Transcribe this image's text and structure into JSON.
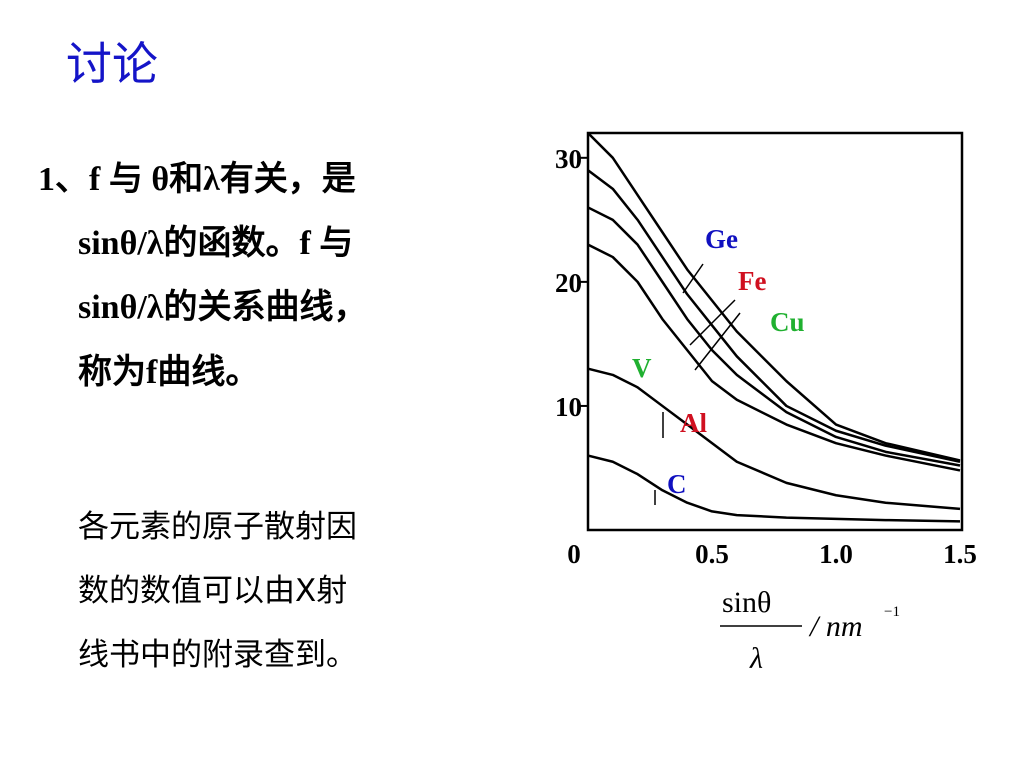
{
  "title": "讨论",
  "paragraph1": [
    "1、f 与 θ和λ有关，是",
    "sinθ/λ的函数。f 与",
    "sinθ/λ的关系曲线，",
    "称为f曲线。"
  ],
  "paragraph2": [
    "各元素的原子散射因",
    "数的数值可以由X射",
    "线书中的附录查到。"
  ],
  "chart_data": {
    "type": "line",
    "x": [
      0,
      0.1,
      0.2,
      0.3,
      0.4,
      0.5,
      0.6,
      0.8,
      1.0,
      1.2,
      1.5
    ],
    "series": [
      {
        "name": "Ge",
        "color": "#000000",
        "label_color": "#1010c0",
        "values": [
          32,
          30,
          27,
          24,
          21,
          18.5,
          16,
          12,
          8.5,
          7,
          5.6
        ]
      },
      {
        "name": "Fe",
        "color": "#000000",
        "label_color": "#d01020",
        "values": [
          29,
          27.5,
          25,
          22,
          19,
          16.5,
          14,
          10,
          8,
          6.8,
          5.5
        ]
      },
      {
        "name": "Cu",
        "color": "#000000",
        "label_color": "#20b030",
        "values": [
          26,
          25,
          23,
          20,
          17,
          14.5,
          12.5,
          9.5,
          7.5,
          6.3,
          5.2
        ]
      },
      {
        "name": "V",
        "color": "#000000",
        "label_color": "#20b030",
        "values": [
          23,
          22,
          20,
          17,
          14.5,
          12,
          10.5,
          8.5,
          7,
          6,
          4.8
        ]
      },
      {
        "name": "Al",
        "color": "#000000",
        "label_color": "#d01020",
        "values": [
          13,
          12.5,
          11.5,
          10,
          8.5,
          7,
          5.5,
          3.8,
          2.8,
          2.2,
          1.7
        ]
      },
      {
        "name": "C",
        "color": "#000000",
        "label_color": "#1010c0",
        "values": [
          6,
          5.5,
          4.5,
          3.2,
          2.2,
          1.5,
          1.2,
          1,
          0.9,
          0.8,
          0.7
        ]
      }
    ],
    "xlim": [
      0,
      1.5
    ],
    "ylim": [
      0,
      32
    ],
    "xticks": [
      0,
      0.5,
      {
        "value": 1,
        "label": "1.0"
      },
      1.5
    ],
    "yticks": [
      10,
      20,
      30
    ],
    "x_label": {
      "numerator": "sinθ",
      "denominator": "λ",
      "unit": "/ nm",
      "exponent": "−1"
    }
  }
}
